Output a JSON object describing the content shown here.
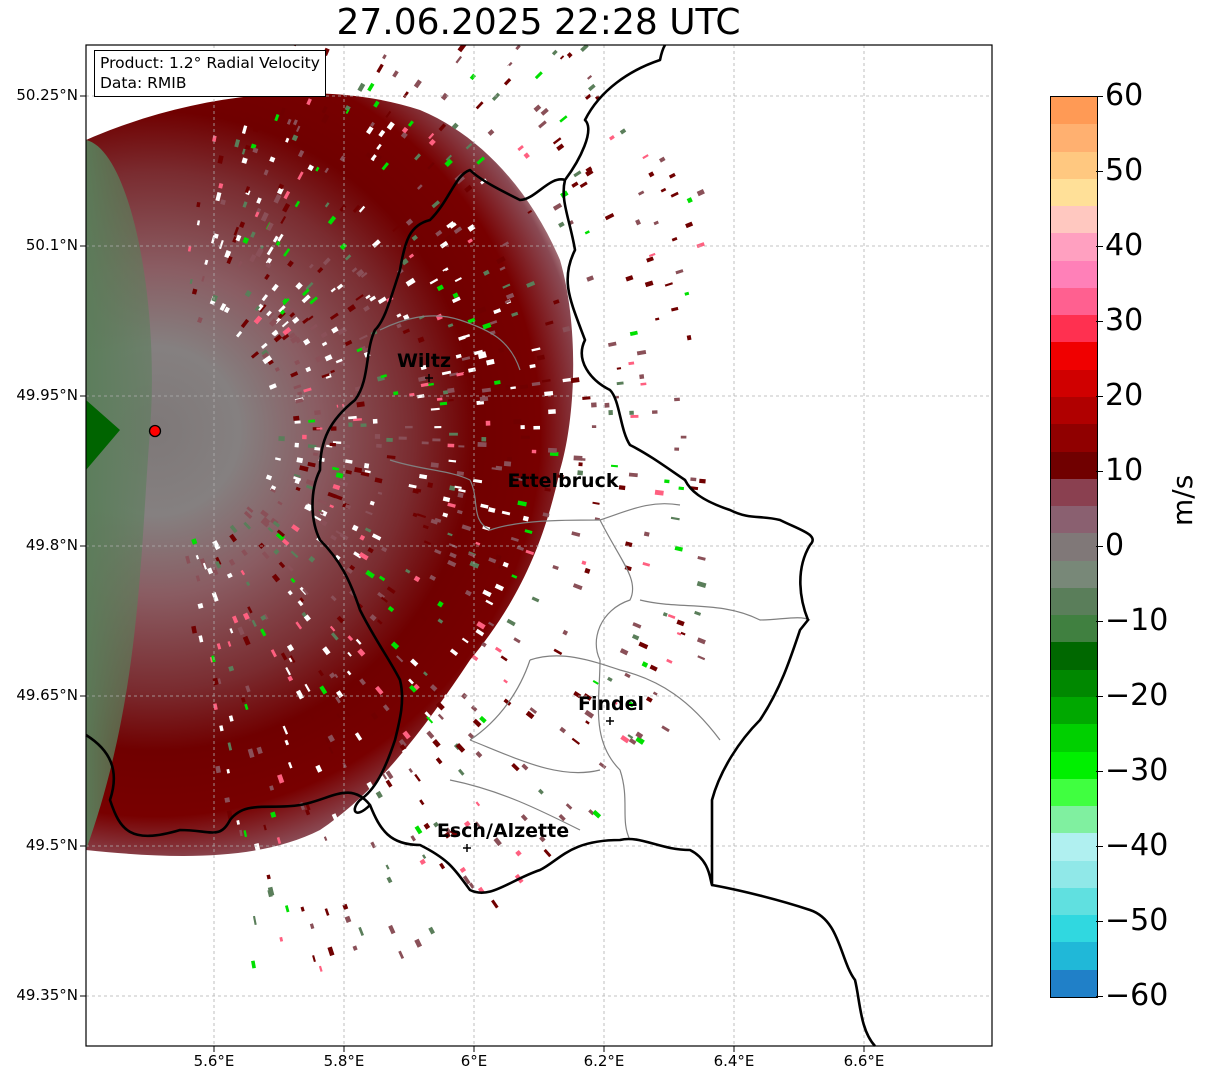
{
  "title": "27.06.2025 22:28 UTC",
  "info": {
    "product": "Product: 1.2° Radial Velocity",
    "data": "Data: RMIB"
  },
  "map": {
    "lat_labels": [
      "50.25°N",
      "50.1°N",
      "49.95°N",
      "49.8°N",
      "49.65°N",
      "49.5°N",
      "49.35°N"
    ],
    "lon_labels": [
      "5.6°E",
      "5.8°E",
      "6°E",
      "6.2°E",
      "6.4°E",
      "6.6°E"
    ],
    "radar_site": "radar-site-marker",
    "cities": [
      {
        "name": "Wiltz"
      },
      {
        "name": "Ettelbruck"
      },
      {
        "name": "Findel"
      },
      {
        "name": "Esch/Alzette"
      }
    ],
    "colors": {
      "border": "#000000",
      "cantons": "#808080",
      "receding_strong": "#7a0000",
      "receding_weak": "#8a5058",
      "near_zero": "#868080",
      "approaching": "#5a7e5a",
      "approaching_strong": "#00e000"
    }
  },
  "colorbar": {
    "label": "m/s",
    "ticks": [
      "60",
      "50",
      "40",
      "30",
      "20",
      "10",
      "0",
      "−10",
      "−20",
      "−30",
      "−40",
      "−50",
      "−60"
    ],
    "range": [
      -60,
      60
    ],
    "colors_top_to_bottom": [
      "#ff9a55",
      "#ffb070",
      "#ffc880",
      "#ffe098",
      "#ffc8c0",
      "#ffa0c0",
      "#ff80b8",
      "#ff6090",
      "#ff3050",
      "#f00000",
      "#d00000",
      "#b00000",
      "#900000",
      "#700000",
      "#8a4050",
      "#8a6070",
      "#807878",
      "#788878",
      "#5a7e5a",
      "#408040",
      "#006800",
      "#008800",
      "#00a800",
      "#00d000",
      "#00f000",
      "#40ff40",
      "#80f0a0",
      "#b0f0f0",
      "#90e8e8",
      "#60e0e0",
      "#30d8e0",
      "#20b8d8",
      "#2080c8"
    ]
  }
}
